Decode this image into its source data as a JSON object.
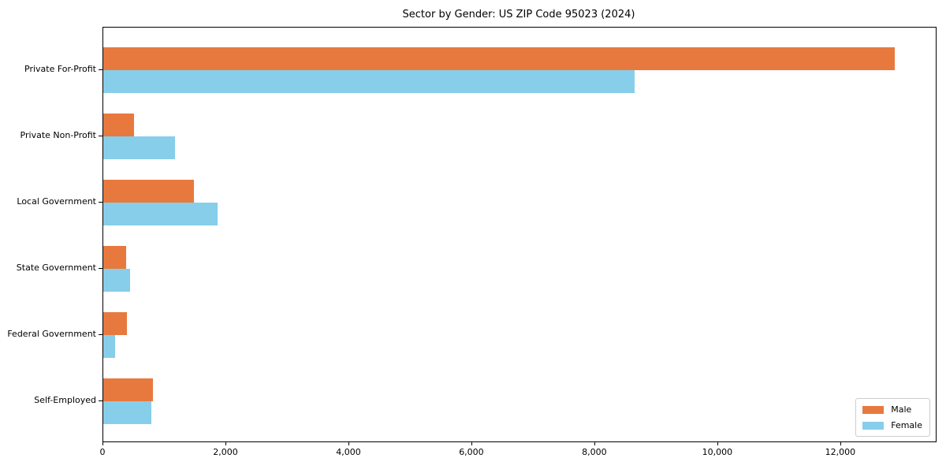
{
  "chart_data": {
    "type": "bar",
    "orientation": "horizontal",
    "title": "Sector by Gender: US ZIP Code 95023 (2024)",
    "categories": [
      "Private For-Profit",
      "Private Non-Profit",
      "Local Government",
      "State Government",
      "Federal Government",
      "Self-Employed"
    ],
    "series": [
      {
        "name": "Male",
        "color": "#E8793E",
        "values": [
          12870,
          500,
          1470,
          370,
          390,
          810
        ]
      },
      {
        "name": "Female",
        "color": "#87CEEB",
        "values": [
          8640,
          1170,
          1860,
          430,
          190,
          780
        ]
      }
    ],
    "xlabel": "",
    "ylabel": "",
    "xlim": [
      0,
      13540
    ],
    "xticks": [
      0,
      2000,
      4000,
      6000,
      8000,
      10000,
      12000
    ],
    "xtick_labels": [
      "0",
      "2,000",
      "4,000",
      "6,000",
      "8,000",
      "10,000",
      "12,000"
    ],
    "grid": false,
    "legend_position": "lower right",
    "plot_border_color": "#000000",
    "background_color": "#ffffff"
  }
}
